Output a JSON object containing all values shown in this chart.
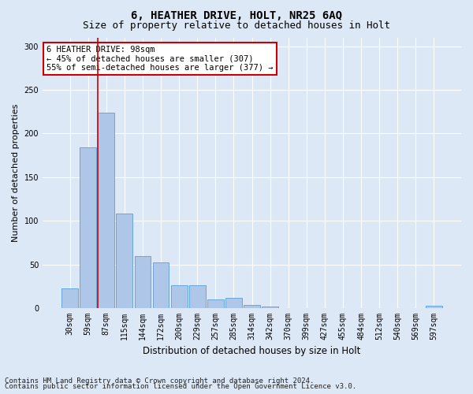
{
  "title1": "6, HEATHER DRIVE, HOLT, NR25 6AQ",
  "title2": "Size of property relative to detached houses in Holt",
  "xlabel": "Distribution of detached houses by size in Holt",
  "ylabel": "Number of detached properties",
  "bar_labels": [
    "30sqm",
    "59sqm",
    "87sqm",
    "115sqm",
    "144sqm",
    "172sqm",
    "200sqm",
    "229sqm",
    "257sqm",
    "285sqm",
    "314sqm",
    "342sqm",
    "370sqm",
    "399sqm",
    "427sqm",
    "455sqm",
    "484sqm",
    "512sqm",
    "540sqm",
    "569sqm",
    "597sqm"
  ],
  "bar_values": [
    23,
    184,
    224,
    108,
    60,
    52,
    26,
    26,
    10,
    12,
    4,
    2,
    0,
    0,
    0,
    0,
    0,
    0,
    0,
    0,
    3
  ],
  "bar_color": "#aec6e8",
  "bar_edge_color": "#5a9fd4",
  "vline_color": "#cc0000",
  "vline_x_index": 2,
  "annotation_text": "6 HEATHER DRIVE: 98sqm\n← 45% of detached houses are smaller (307)\n55% of semi-detached houses are larger (377) →",
  "annotation_box_color": "#ffffff",
  "annotation_box_edge": "#cc0000",
  "ylim": [
    0,
    310
  ],
  "yticks": [
    0,
    50,
    100,
    150,
    200,
    250,
    300
  ],
  "footer1": "Contains HM Land Registry data © Crown copyright and database right 2024.",
  "footer2": "Contains public sector information licensed under the Open Government Licence v3.0.",
  "background_color": "#dce8f5",
  "plot_bg_color": "#dce8f5",
  "title1_fontsize": 10,
  "title2_fontsize": 9,
  "xlabel_fontsize": 8.5,
  "ylabel_fontsize": 8,
  "tick_fontsize": 7,
  "footer_fontsize": 6.5,
  "annotation_fontsize": 7.5
}
